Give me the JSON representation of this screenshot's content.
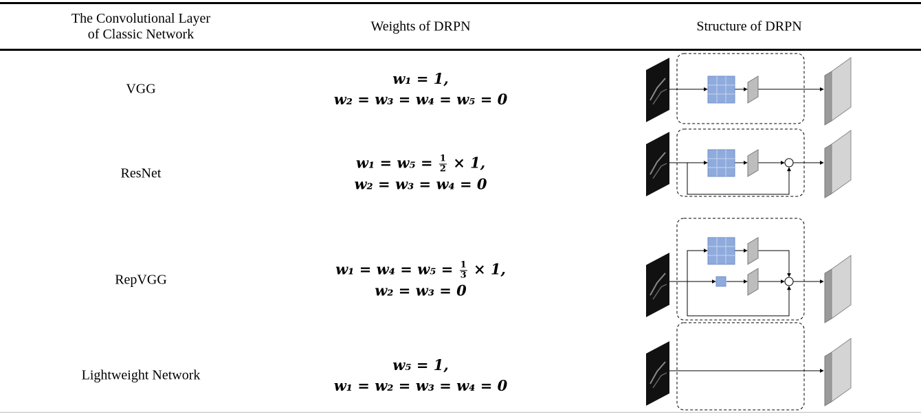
{
  "header": {
    "columns": [
      [
        "The Convolutional Layer",
        "of Classic Network"
      ],
      [
        "Weights of DRPN"
      ],
      [
        "Structure of DRPN"
      ]
    ]
  },
  "rows": [
    {
      "network": "VGG",
      "weights": [
        {
          "text": "w₁ = 1,"
        },
        {
          "text": "w₂ = w₃ = w₄ = w₅ = 0"
        }
      ]
    },
    {
      "network": "ResNet",
      "weights": [
        {
          "before": "w₁ = w₅ = ",
          "numerator": "1",
          "denominator": "2",
          "after": " × 1,"
        },
        {
          "text": "w₂ = w₃ = w₄ = 0"
        }
      ]
    },
    {
      "network": "RepVGG",
      "weights": [
        {
          "before": "w₁ = w₄ = w₅ = ",
          "numerator": "1",
          "denominator": "3",
          "after": " × 1,"
        },
        {
          "text": "w₂ = w₃ = 0"
        }
      ]
    },
    {
      "network": "Lightweight Network",
      "weights": [
        {
          "text": "w₅ = 1,"
        },
        {
          "text": "w₁ = w₂ = w₃ = w₄ = 0"
        }
      ]
    }
  ]
}
